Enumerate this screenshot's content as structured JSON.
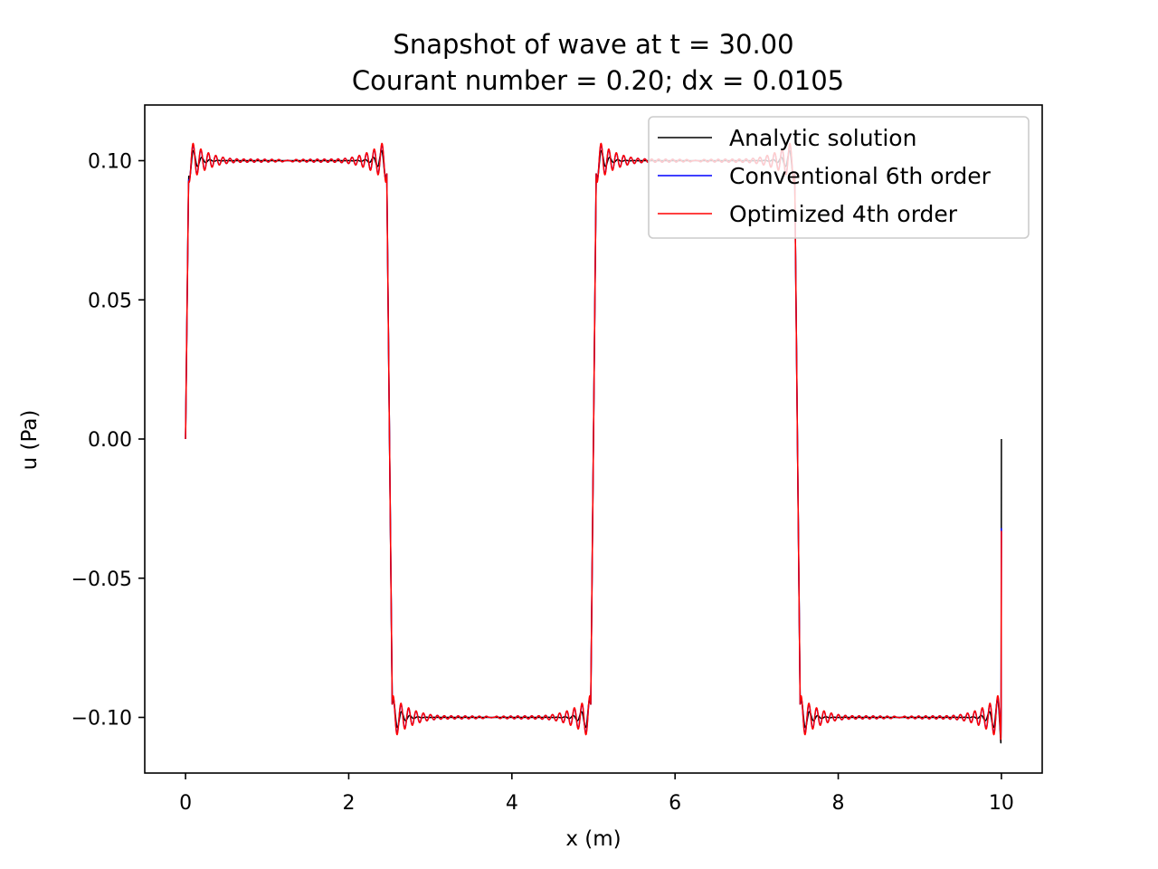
{
  "chart_data": {
    "type": "line",
    "title": "Snapshot of wave at t = 30.00",
    "subtitle": "Courant number = 0.20; dx = 0.0105",
    "xlabel": "x (m)",
    "ylabel": "u (Pa)",
    "xlim": [
      -0.5,
      10.5
    ],
    "ylim": [
      -0.12,
      0.12
    ],
    "x_ticks": [
      0,
      2,
      4,
      6,
      8,
      10
    ],
    "x_tick_labels": [
      "0",
      "2",
      "4",
      "6",
      "8",
      "10"
    ],
    "y_ticks": [
      0.1,
      0.05,
      0.0,
      -0.05,
      -0.1
    ],
    "y_tick_labels": [
      "0.10",
      "0.05",
      "0.00",
      "−0.05",
      "−0.10"
    ],
    "grid": false,
    "legend_position": "upper right",
    "square_wave": {
      "amplitude": 0.1,
      "period": 5.0,
      "domain": [
        0,
        10
      ],
      "jumps_down": [
        2.5,
        7.5
      ],
      "jumps_up": [
        5.0
      ]
    },
    "series": [
      {
        "name": "Analytic solution",
        "color": "#000000",
        "style": "gibbs",
        "overshoot": 0.118,
        "end_value": 0.0
      },
      {
        "name": "Conventional 6th order",
        "color": "#0000ff",
        "style": "dispersive",
        "overshoot": 0.112,
        "end_value": -0.032
      },
      {
        "name": "Optimized 4th order",
        "color": "#ff0000",
        "style": "dispersive",
        "overshoot": 0.113,
        "end_value": -0.033
      }
    ]
  }
}
